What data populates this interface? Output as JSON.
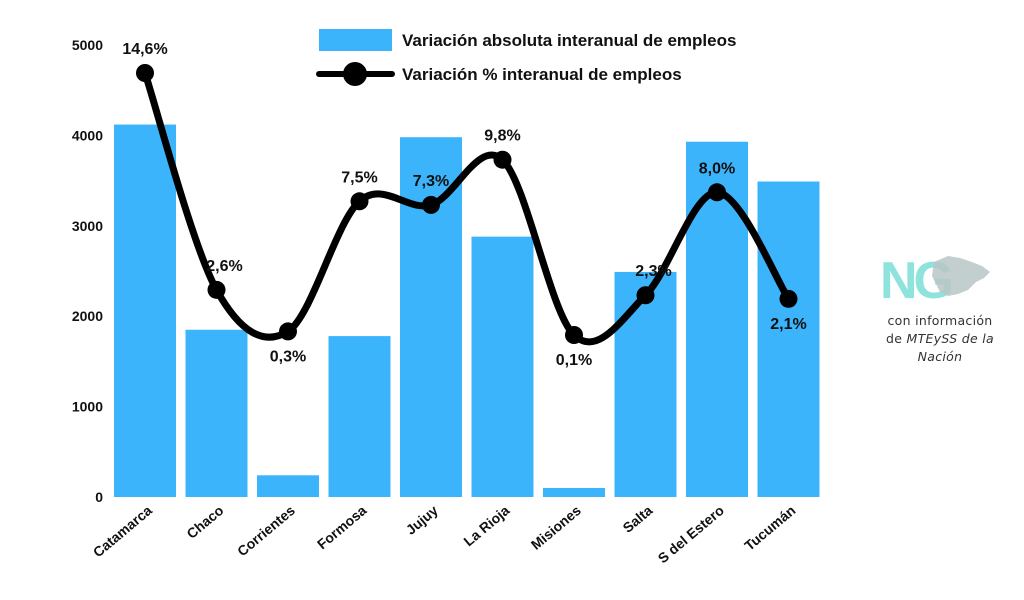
{
  "chart_data": {
    "type": "bar",
    "categories": [
      "Catamarca",
      "Chaco",
      "Corrientes",
      "Formosa",
      "Jujuy",
      "La Rioja",
      "Misiones",
      "Salta",
      "S del Estero",
      "Tucumán"
    ],
    "series": [
      {
        "name": "Variación absoluta interanual de empleos",
        "kind": "bar",
        "axis": "left",
        "values": [
          4120,
          1850,
          240,
          1780,
          3980,
          2880,
          100,
          2490,
          3930,
          3490
        ]
      },
      {
        "name": "Variación % interanual de empleos",
        "kind": "line",
        "axis": "secondary",
        "values": [
          14.6,
          2.6,
          0.3,
          7.5,
          7.3,
          9.8,
          0.1,
          2.3,
          8.0,
          2.1
        ],
        "labels": [
          "14,6%",
          "2,6%",
          "0,3%",
          "7,5%",
          "7,3%",
          "9,8%",
          "0,1%",
          "2,3%",
          "8,0%",
          "2,1%"
        ]
      }
    ],
    "ylim": [
      0,
      5000
    ],
    "yticks": [
      0,
      1000,
      2000,
      3000,
      4000,
      5000
    ],
    "secondary_ylim": [
      0.1,
      14.6
    ],
    "title": "",
    "xlabel": "",
    "ylabel": "",
    "legend_position": "top-center",
    "grid": false
  },
  "colors": {
    "bar": "#3bb4fb",
    "line": "#000000",
    "logo_teal": "#8fe3dd",
    "logo_grey": "#b9c6c6"
  },
  "logo": {
    "text": "NG",
    "icon": "argentina-north-map-icon"
  },
  "source": {
    "line1": "con información",
    "line2_prefix": "de ",
    "line2_italic": "MTEySS de la",
    "line3_italic": "Nación"
  }
}
